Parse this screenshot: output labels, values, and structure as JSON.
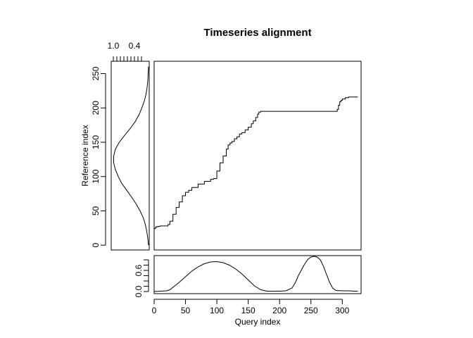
{
  "chart_data": {
    "type": "line",
    "title": "Timeseries alignment",
    "grid": false,
    "color": "#000000",
    "main": {
      "xlabel": "Query index",
      "ylabel": "Reference index",
      "xlim": [
        0,
        330
      ],
      "ylim": [
        -7,
        268
      ],
      "xticks": [
        "0",
        "50",
        "100",
        "150",
        "200",
        "250",
        "300"
      ],
      "yticks": [
        "0",
        "50",
        "100",
        "150",
        "200",
        "250"
      ],
      "alignment": {
        "x": [
          0,
          2,
          4,
          7,
          10,
          13,
          16,
          19,
          22,
          25,
          30,
          35,
          40,
          45,
          50,
          55,
          60,
          70,
          80,
          90,
          95,
          100,
          105,
          110,
          115,
          118,
          121,
          124,
          128,
          132,
          136,
          140,
          145,
          150,
          155,
          158,
          162,
          165,
          167,
          170,
          180,
          200,
          220,
          240,
          260,
          280,
          290,
          292,
          294,
          296,
          298,
          300,
          305,
          310,
          315,
          320,
          325
        ],
        "y": [
          24,
          26,
          27,
          27.5,
          28,
          28,
          28,
          28,
          30,
          35,
          45,
          55,
          63,
          72,
          77,
          80,
          84,
          89,
          93,
          96,
          97,
          108,
          120,
          130,
          140,
          146,
          149,
          151,
          155,
          158,
          162,
          164,
          168,
          172,
          177,
          181,
          186,
          191,
          194,
          195,
          195,
          195,
          195,
          195,
          195,
          195,
          195,
          198,
          204,
          209,
          211,
          213,
          215,
          216,
          216,
          216,
          216
        ]
      }
    },
    "reference_panel": {
      "xticks": [
        "1.0",
        "0.4"
      ],
      "ref_index": [
        0,
        10,
        20,
        30,
        40,
        50,
        60,
        70,
        80,
        90,
        100,
        110,
        120,
        130,
        140,
        150,
        160,
        170,
        180,
        190,
        200,
        210,
        220,
        230,
        240,
        250,
        260
      ],
      "value": [
        0.0,
        0.02,
        0.05,
        0.09,
        0.15,
        0.24,
        0.35,
        0.48,
        0.62,
        0.76,
        0.86,
        0.94,
        0.99,
        0.99,
        0.94,
        0.83,
        0.68,
        0.52,
        0.38,
        0.27,
        0.19,
        0.12,
        0.07,
        0.04,
        0.02,
        0.01,
        0.0
      ]
    },
    "query_panel": {
      "yticks": [
        "0.0",
        "0.6"
      ],
      "ylim": [
        -0.06,
        1.02
      ],
      "query_index": [
        0,
        10,
        20,
        25,
        30,
        40,
        50,
        60,
        70,
        80,
        90,
        100,
        110,
        120,
        130,
        140,
        150,
        160,
        170,
        180,
        190,
        200,
        210,
        220,
        225,
        230,
        235,
        240,
        245,
        250,
        255,
        260,
        265,
        270,
        275,
        280,
        285,
        290,
        300,
        310,
        320,
        325
      ],
      "value": [
        0.0,
        0.01,
        0.02,
        0.05,
        0.12,
        0.26,
        0.42,
        0.58,
        0.7,
        0.79,
        0.84,
        0.85,
        0.82,
        0.75,
        0.64,
        0.5,
        0.33,
        0.16,
        0.05,
        0.01,
        0.01,
        0.01,
        0.02,
        0.1,
        0.25,
        0.45,
        0.62,
        0.78,
        0.91,
        0.98,
        1.0,
        0.98,
        0.9,
        0.72,
        0.48,
        0.25,
        0.09,
        0.03,
        0.02,
        0.02,
        0.01,
        0.01
      ]
    }
  }
}
